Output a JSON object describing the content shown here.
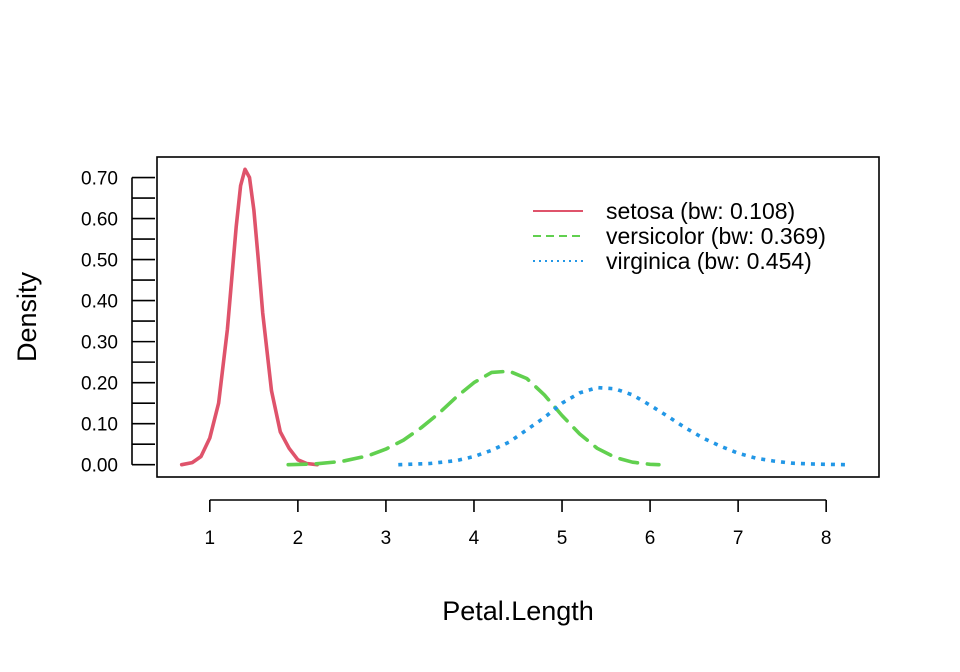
{
  "chart_data": {
    "type": "line",
    "title": "",
    "xlabel": "Petal.Length",
    "ylabel": "Density",
    "xlim": [
      0.4,
      8.6
    ],
    "ylim": [
      -0.03,
      0.75
    ],
    "x_ticks": [
      1,
      2,
      3,
      4,
      5,
      6,
      7,
      8
    ],
    "y_ticks": [
      0.0,
      0.1,
      0.2,
      0.3,
      0.4,
      0.5,
      0.6,
      0.7
    ],
    "y_minor_ticks": [
      0.05,
      0.15,
      0.25,
      0.35,
      0.45,
      0.55,
      0.65
    ],
    "x_tick_labels": [
      "1",
      "2",
      "3",
      "4",
      "5",
      "6",
      "7",
      "8"
    ],
    "y_tick_labels": [
      "0.00",
      "0.10",
      "0.20",
      "0.30",
      "0.40",
      "0.50",
      "0.60",
      "0.70"
    ],
    "grid": false,
    "legend_position": "top-right",
    "series": [
      {
        "name": "setosa (bw: 0.108)",
        "color": "#DF536B",
        "linestyle": "solid",
        "x": [
          0.68,
          0.8,
          0.9,
          1.0,
          1.1,
          1.2,
          1.3,
          1.35,
          1.4,
          1.45,
          1.5,
          1.55,
          1.6,
          1.7,
          1.8,
          1.9,
          2.0,
          2.1,
          2.22
        ],
        "y": [
          0.0,
          0.005,
          0.02,
          0.065,
          0.15,
          0.33,
          0.58,
          0.68,
          0.72,
          0.7,
          0.62,
          0.5,
          0.37,
          0.18,
          0.08,
          0.04,
          0.012,
          0.003,
          0.0
        ]
      },
      {
        "name": "versicolor (bw: 0.369)",
        "color": "#61D04F",
        "linestyle": "dashed",
        "x": [
          1.89,
          2.2,
          2.5,
          2.8,
          3.0,
          3.2,
          3.4,
          3.6,
          3.8,
          4.0,
          4.2,
          4.4,
          4.6,
          4.8,
          5.0,
          5.2,
          5.4,
          5.6,
          5.8,
          6.0,
          6.1
        ],
        "y": [
          0.0,
          0.002,
          0.008,
          0.022,
          0.038,
          0.06,
          0.09,
          0.125,
          0.165,
          0.2,
          0.225,
          0.228,
          0.21,
          0.17,
          0.12,
          0.075,
          0.04,
          0.018,
          0.006,
          0.001,
          0.0
        ]
      },
      {
        "name": "virginica (bw: 0.454)",
        "color": "#2297E6",
        "linestyle": "dotted",
        "x": [
          3.14,
          3.5,
          3.8,
          4.0,
          4.2,
          4.4,
          4.6,
          4.8,
          5.0,
          5.2,
          5.4,
          5.6,
          5.8,
          6.0,
          6.2,
          6.4,
          6.6,
          6.8,
          7.0,
          7.2,
          7.4,
          7.6,
          7.8,
          8.0,
          8.22
        ],
        "y": [
          0.0,
          0.003,
          0.01,
          0.02,
          0.035,
          0.055,
          0.085,
          0.115,
          0.15,
          0.175,
          0.188,
          0.185,
          0.17,
          0.145,
          0.118,
          0.09,
          0.065,
          0.045,
          0.028,
          0.016,
          0.009,
          0.004,
          0.002,
          0.001,
          0.0
        ]
      }
    ]
  }
}
